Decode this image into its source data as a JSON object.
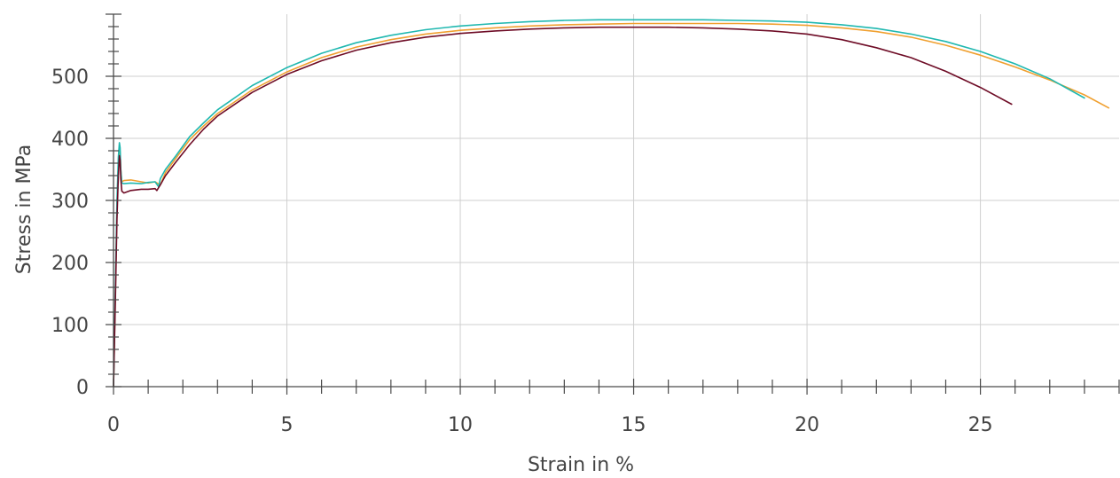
{
  "chart_data": {
    "type": "line",
    "title": "",
    "xlabel": "Strain in %",
    "ylabel": "Stress in MPa",
    "xlim": [
      0,
      29
    ],
    "ylim": [
      0,
      600
    ],
    "xticks": [
      0,
      5,
      10,
      15,
      20,
      25
    ],
    "yticks": [
      0,
      100,
      200,
      300,
      400,
      500
    ],
    "grid": true,
    "legend": "none",
    "series": [
      {
        "color": "#f0a030",
        "x": [
          0,
          0.05,
          0.1,
          0.14,
          0.17,
          0.19,
          0.21,
          0.24,
          0.3,
          0.5,
          0.8,
          1.0,
          1.2,
          1.35,
          1.5,
          1.8,
          2.2,
          2.6,
          3.0,
          4.0,
          5.0,
          6.0,
          7.0,
          8.0,
          9.0,
          10.0,
          11.0,
          12.0,
          13.0,
          14.0,
          15.0,
          16.0,
          17.0,
          18.0,
          19.0,
          20.0,
          21.0,
          22.0,
          23.0,
          24.0,
          25.0,
          26.0,
          27.0,
          28.0,
          28.7
        ],
        "y": [
          0,
          140,
          290,
          360,
          385,
          378,
          350,
          330,
          332,
          333,
          330,
          328,
          330,
          325,
          345,
          368,
          398,
          420,
          440,
          478,
          507,
          530,
          547,
          559,
          568,
          574,
          578,
          581,
          583,
          584,
          585,
          585,
          585,
          585,
          584,
          582,
          578,
          572,
          563,
          550,
          534,
          515,
          494,
          470,
          449
        ]
      },
      {
        "color": "#20b8b0",
        "x": [
          0,
          0.05,
          0.1,
          0.14,
          0.17,
          0.19,
          0.21,
          0.24,
          0.3,
          0.5,
          0.8,
          1.0,
          1.2,
          1.3,
          1.35,
          1.5,
          1.8,
          2.2,
          2.6,
          3.0,
          4.0,
          5.0,
          6.0,
          7.0,
          8.0,
          9.0,
          10.0,
          11.0,
          12.0,
          13.0,
          14.0,
          15.0,
          16.0,
          17.0,
          18.0,
          19.0,
          20.0,
          21.0,
          22.0,
          23.0,
          24.0,
          25.0,
          26.0,
          27.0,
          28.0
        ],
        "y": [
          0,
          150,
          300,
          370,
          393,
          385,
          350,
          328,
          327,
          328,
          327,
          329,
          330,
          322,
          335,
          350,
          372,
          403,
          425,
          446,
          485,
          514,
          537,
          554,
          566,
          575,
          581,
          585,
          588,
          590,
          591,
          591,
          591,
          591,
          590,
          589,
          587,
          583,
          577,
          568,
          556,
          540,
          520,
          496,
          465
        ]
      },
      {
        "color": "#6e0c26",
        "x": [
          0,
          0.05,
          0.1,
          0.14,
          0.17,
          0.19,
          0.21,
          0.24,
          0.3,
          0.5,
          0.8,
          1.0,
          1.2,
          1.25,
          1.35,
          1.5,
          1.8,
          2.2,
          2.6,
          3.0,
          4.0,
          5.0,
          6.0,
          7.0,
          8.0,
          9.0,
          10.0,
          11.0,
          12.0,
          13.0,
          14.0,
          15.0,
          16.0,
          17.0,
          18.0,
          19.0,
          20.0,
          21.0,
          22.0,
          23.0,
          24.0,
          25.0,
          25.9
        ],
        "y": [
          0,
          130,
          270,
          340,
          372,
          365,
          335,
          315,
          312,
          316,
          318,
          318,
          319,
          316,
          325,
          340,
          362,
          390,
          415,
          436,
          474,
          503,
          525,
          542,
          554,
          563,
          569,
          573,
          576,
          578,
          579,
          579,
          579,
          578,
          576,
          573,
          568,
          559,
          546,
          530,
          508,
          482,
          455
        ]
      }
    ]
  }
}
